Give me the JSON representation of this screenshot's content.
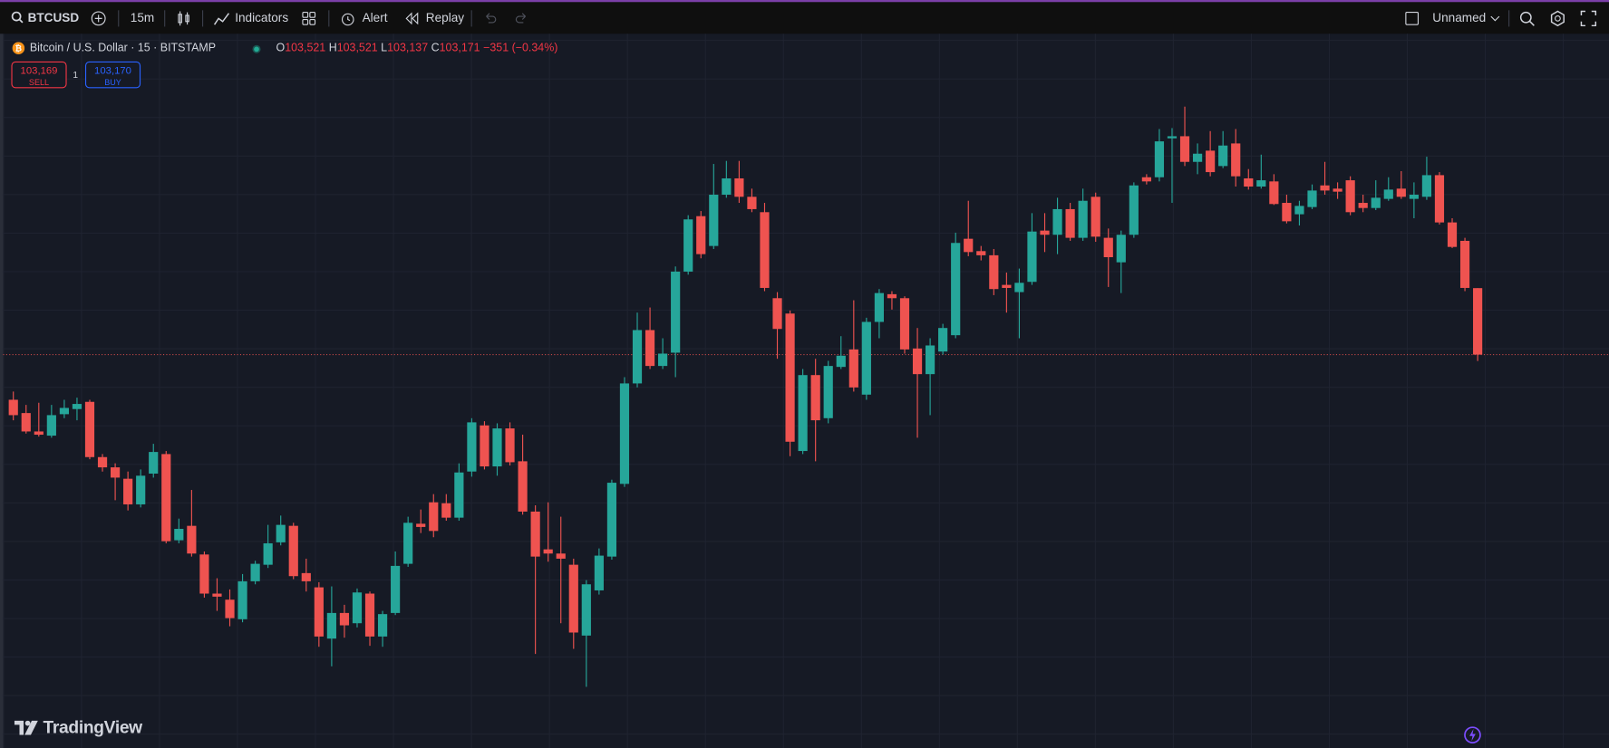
{
  "toolbar": {
    "symbol": "BTCUSD",
    "interval": "15m",
    "indicators": "Indicators",
    "alert": "Alert",
    "replay": "Replay",
    "layout_name": "Unnamed"
  },
  "legend": {
    "title": "Bitcoin / U.S. Dollar · 15 · BITSTAMP",
    "open_key": "O",
    "open": "103,521",
    "high_key": "H",
    "high": "103,521",
    "low_key": "L",
    "low": "103,137",
    "close_key": "C",
    "close": "103,171",
    "change": "−351 (−0.34%)"
  },
  "trade": {
    "sell_price": "103,169",
    "sell": "SELL",
    "quantity": "1",
    "buy_price": "103,170",
    "buy": "BUY"
  },
  "brand": "TradingView",
  "chart_data": {
    "type": "candlestick",
    "up_color": "#26a69a",
    "down_color": "#ef5350",
    "open": [
      102933,
      102863,
      102766,
      102744,
      102857,
      102884,
      102922,
      102631,
      102577,
      102517,
      102382,
      102544,
      102647,
      102193,
      102269,
      102118,
      101912,
      101880,
      101777,
      101977,
      102064,
      102182,
      102269,
      102020,
      101945,
      101675,
      101810,
      101756,
      101912,
      101686,
      101810,
      102069,
      102280,
      102393,
      102388,
      102312,
      102555,
      102798,
      102582,
      102782,
      102609,
      102344,
      102145,
      102123,
      102064,
      101691,
      101929,
      102107,
      102490,
      103019,
      103300,
      103111,
      103181,
      103608,
      103900,
      103743,
      104013,
      104099,
      104002,
      103921,
      103468,
      103387,
      102663,
      103063,
      102836,
      103106,
      103198,
      102960,
      103343,
      103489,
      103468,
      103203,
      103068,
      103187,
      103273,
      103781,
      103716,
      103694,
      103538,
      103500,
      103554,
      103824,
      103802,
      103937,
      103786,
      104002,
      103786,
      103657,
      103802,
      104105,
      104105,
      104310,
      104321,
      104186,
      104245,
      104164,
      104283,
      104099,
      104056,
      104083,
      103970,
      103910,
      103948,
      104062,
      104045,
      104089,
      103970,
      103943,
      103991,
      104045,
      103991,
      104002,
      104116,
      103867,
      103770,
      103521
    ],
    "high": [
      102976,
      102906,
      102917,
      102906,
      102933,
      102944,
      102933,
      102647,
      102598,
      102555,
      102566,
      102701,
      102663,
      102307,
      102458,
      102134,
      101993,
      101934,
      102015,
      102085,
      102274,
      102323,
      102285,
      102096,
      101972,
      101950,
      101853,
      101939,
      101923,
      101821,
      102134,
      102317,
      102355,
      102436,
      102436,
      102598,
      102836,
      102820,
      102809,
      102814,
      102749,
      102377,
      102393,
      102317,
      102096,
      101983,
      102150,
      102512,
      103052,
      103392,
      103419,
      103257,
      103635,
      103905,
      103927,
      104175,
      104191,
      104191,
      104045,
      103970,
      103500,
      103403,
      103095,
      103149,
      103138,
      103268,
      103457,
      103365,
      103516,
      103505,
      103478,
      103311,
      103257,
      103333,
      103813,
      103981,
      103743,
      103727,
      103603,
      103624,
      103916,
      103916,
      103997,
      103970,
      104045,
      104024,
      103835,
      103824,
      104078,
      104121,
      104359,
      104364,
      104477,
      104283,
      104348,
      104348,
      104359,
      104148,
      104224,
      104121,
      104013,
      103981,
      104067,
      104186,
      104078,
      104110,
      104013,
      104089,
      104105,
      104137,
      104078,
      104213,
      104132,
      103889,
      103786,
      103521
    ],
    "low": [
      102825,
      102755,
      102739,
      102733,
      102836,
      102825,
      102620,
      102555,
      102404,
      102350,
      102366,
      102523,
      102177,
      102177,
      102107,
      101891,
      101821,
      101740,
      101761,
      101961,
      102047,
      102166,
      101988,
      101923,
      101632,
      101529,
      101680,
      101734,
      101637,
      101632,
      101799,
      102053,
      102231,
      102209,
      102296,
      102296,
      102528,
      102566,
      102533,
      102587,
      102328,
      101594,
      102080,
      101756,
      101621,
      101421,
      101907,
      102091,
      102474,
      102998,
      103095,
      103095,
      103052,
      103592,
      103678,
      103727,
      103997,
      103970,
      103921,
      103505,
      103149,
      102636,
      102647,
      102609,
      102809,
      103095,
      102976,
      102933,
      103257,
      103408,
      103176,
      102733,
      102852,
      103171,
      103257,
      103689,
      103667,
      103484,
      103392,
      103257,
      103538,
      103711,
      103700,
      103770,
      103770,
      103765,
      103527,
      103495,
      103786,
      104067,
      104083,
      103970,
      104164,
      104121,
      104110,
      104153,
      104056,
      104040,
      104045,
      103959,
      103862,
      103851,
      103937,
      104013,
      103991,
      103905,
      103921,
      103932,
      103981,
      103991,
      103889,
      103986,
      103856,
      103732,
      103505,
      103137
    ],
    "close": [
      102852,
      102766,
      102749,
      102852,
      102890,
      102911,
      102631,
      102577,
      102523,
      102382,
      102533,
      102658,
      102188,
      102253,
      102123,
      101912,
      101896,
      101783,
      101977,
      102069,
      102177,
      102274,
      102004,
      101977,
      101686,
      101810,
      101745,
      101918,
      101686,
      101804,
      102058,
      102285,
      102263,
      102242,
      102312,
      102550,
      102814,
      102582,
      102782,
      102604,
      102344,
      102107,
      102123,
      102096,
      101707,
      101961,
      102112,
      102496,
      103019,
      103300,
      103111,
      103176,
      103608,
      103883,
      103700,
      104013,
      104099,
      104002,
      103937,
      103522,
      103306,
      102712,
      103063,
      102825,
      103111,
      103165,
      102998,
      103343,
      103495,
      103468,
      103198,
      103068,
      103219,
      103311,
      103759,
      103711,
      103694,
      103516,
      103522,
      103549,
      103819,
      103802,
      103937,
      103786,
      103981,
      103792,
      103684,
      103802,
      104062,
      104083,
      104294,
      104321,
      104186,
      104229,
      104132,
      104272,
      104110,
      104056,
      104089,
      103964,
      103873,
      103954,
      104035,
      104035,
      104029,
      103921,
      103943,
      103997,
      104040,
      104002,
      104013,
      104116,
      103867,
      103738,
      103522,
      103171
    ]
  }
}
